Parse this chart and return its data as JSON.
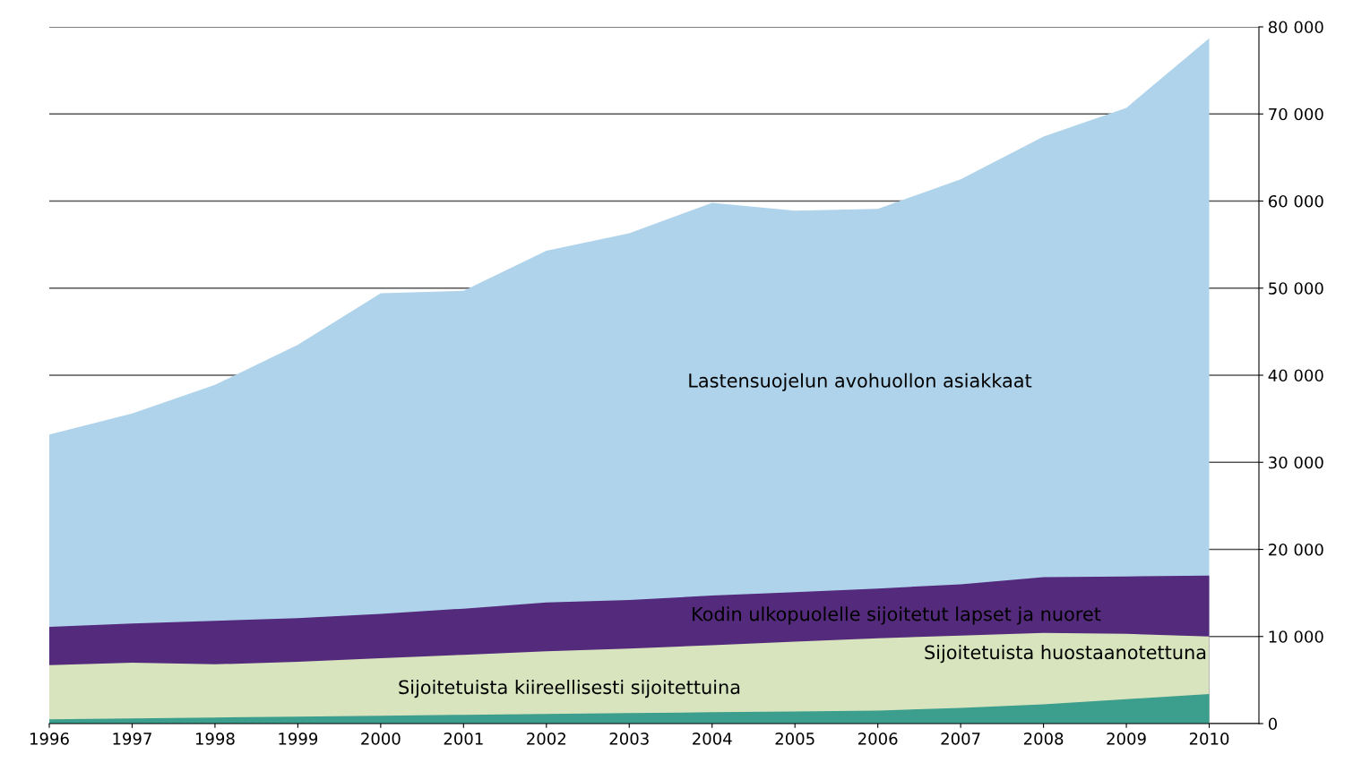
{
  "chart_data": {
    "type": "area",
    "x": [
      1996,
      1997,
      1998,
      1999,
      2000,
      2001,
      2002,
      2003,
      2004,
      2005,
      2006,
      2007,
      2008,
      2009,
      2010
    ],
    "series": [
      {
        "name": "Lastensuojelun avohuollon asiakkaat",
        "color": "#afd3ea",
        "values": [
          33200,
          35600,
          38900,
          43500,
          49400,
          49700,
          54300,
          56300,
          59800,
          58900,
          59100,
          62500,
          67400,
          70700,
          78700
        ]
      },
      {
        "name": "Kodin ulkopuolelle sijoitetut lapset ja nuoret",
        "color": "#542a7c",
        "values": [
          11100,
          11500,
          11800,
          12100,
          12600,
          13200,
          13900,
          14200,
          14700,
          15100,
          15500,
          16000,
          16800,
          16900,
          17000
        ]
      },
      {
        "name": "Sijoitetuista huostaanotettuna",
        "color": "#d7e4bd",
        "values": [
          6700,
          7000,
          6800,
          7100,
          7500,
          7900,
          8300,
          8600,
          9000,
          9400,
          9800,
          10100,
          10400,
          10300,
          10000
        ]
      },
      {
        "name": "Sijoitetuista kiireellisesti sijoitettuina",
        "color": "#3c9e8c",
        "values": [
          500,
          600,
          700,
          800,
          900,
          1000,
          1100,
          1200,
          1300,
          1400,
          1500,
          1800,
          2200,
          2800,
          3400
        ]
      }
    ],
    "xlim": [
      1996,
      2010.6
    ],
    "xticks": [
      1996,
      1997,
      1998,
      1999,
      2000,
      2001,
      2002,
      2003,
      2004,
      2005,
      2006,
      2007,
      2008,
      2009,
      2010
    ],
    "ylim": [
      0,
      80000
    ],
    "yticks": [
      0,
      {
        "value": 10000,
        "label": "10 000"
      },
      {
        "value": 20000,
        "label": "20 000"
      },
      {
        "value": 30000,
        "label": "30 000"
      },
      {
        "value": 40000,
        "label": "40 000"
      },
      {
        "value": 50000,
        "label": "50 000"
      },
      {
        "value": 60000,
        "label": "60 000"
      },
      {
        "value": 70000,
        "label": "70 000"
      },
      {
        "value": 80000,
        "label": "80 000"
      }
    ],
    "grid": "y"
  }
}
